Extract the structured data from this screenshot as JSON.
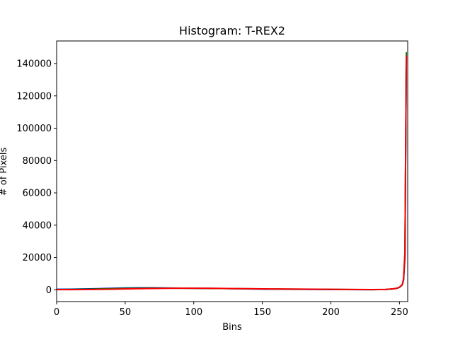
{
  "chart_data": {
    "type": "line",
    "title": "Histogram: T-REX2",
    "xlabel": "Bins",
    "ylabel": "# of Pixels",
    "xlim": [
      0,
      256
    ],
    "ylim": [
      -7300,
      154000
    ],
    "xticks": [
      0,
      50,
      100,
      150,
      200,
      250
    ],
    "xtick_labels": [
      "0",
      "50",
      "100",
      "150",
      "200",
      "250"
    ],
    "yticks": [
      0,
      20000,
      40000,
      60000,
      80000,
      100000,
      120000,
      140000
    ],
    "ytick_labels": [
      "0",
      "20000",
      "40000",
      "60000",
      "80000",
      "100000",
      "120000",
      "140000"
    ],
    "grid": false,
    "series": [
      {
        "color": "#0000ff",
        "x": [
          0,
          10,
          20,
          30,
          40,
          50,
          60,
          70,
          80,
          90,
          100,
          110,
          120,
          130,
          140,
          150,
          160,
          170,
          180,
          190,
          200,
          210,
          220,
          230,
          240,
          245,
          248,
          250,
          252,
          253,
          254,
          255
        ],
        "y": [
          300,
          350,
          500,
          650,
          900,
          1100,
          1200,
          1200,
          1100,
          1000,
          950,
          900,
          800,
          650,
          500,
          400,
          350,
          300,
          250,
          200,
          150,
          120,
          100,
          80,
          200,
          500,
          900,
          1500,
          3000,
          6000,
          20000,
          143000
        ]
      },
      {
        "color": "#008000",
        "x": [
          0,
          10,
          20,
          30,
          40,
          50,
          60,
          70,
          80,
          90,
          100,
          110,
          120,
          130,
          140,
          150,
          160,
          170,
          180,
          190,
          200,
          210,
          220,
          230,
          240,
          245,
          248,
          250,
          252,
          253,
          254,
          255
        ],
        "y": [
          200,
          250,
          350,
          500,
          700,
          900,
          1000,
          1050,
          1000,
          950,
          900,
          850,
          800,
          700,
          600,
          500,
          450,
          400,
          350,
          300,
          250,
          200,
          150,
          100,
          200,
          500,
          900,
          1500,
          3000,
          6500,
          22000,
          147000
        ]
      },
      {
        "color": "#ff0000",
        "x": [
          0,
          10,
          20,
          30,
          40,
          50,
          60,
          70,
          80,
          90,
          100,
          110,
          120,
          130,
          140,
          150,
          160,
          170,
          180,
          190,
          200,
          210,
          220,
          230,
          240,
          245,
          248,
          250,
          252,
          253,
          254,
          255
        ],
        "y": [
          100,
          100,
          150,
          250,
          350,
          500,
          650,
          800,
          900,
          950,
          950,
          900,
          850,
          750,
          650,
          550,
          500,
          450,
          400,
          350,
          300,
          250,
          200,
          150,
          250,
          550,
          950,
          1600,
          3200,
          7000,
          24000,
          145000
        ]
      }
    ]
  }
}
